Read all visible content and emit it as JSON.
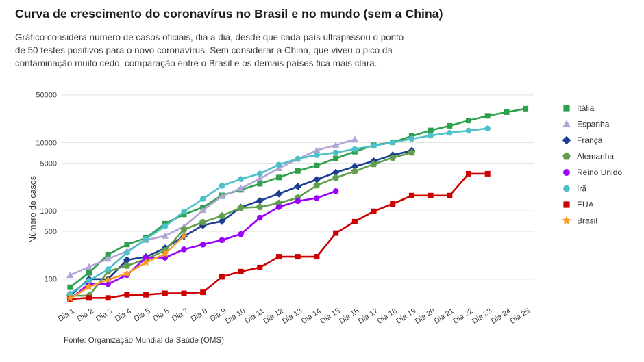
{
  "page": {
    "title": "Curva de crescimento do coronavírus no Brasil e no mundo (sem a China)",
    "subtitle_lines": [
      "Gráfico considera número de casos oficiais, dia a dia, desde que cada país ultrapassou o ponto",
      "de 50 testes positivos para o novo coronavírus. Sem considerar a China, que viveu o pico da",
      "contaminação muito cedo, comparação entre o Brasil e os demais países fica mais clara."
    ],
    "source": "Fonte: Organização Mundial da Saúde (OMS)"
  },
  "chart_data": {
    "type": "line",
    "title": "Curva de crescimento do coronavírus no Brasil e no mundo (sem a China)",
    "xlabel": "",
    "ylabel": "Número de casos",
    "yscale": "log",
    "ylim": [
      46,
      57000
    ],
    "yticks": [
      100,
      500,
      1000,
      5000,
      10000,
      50000
    ],
    "grid": true,
    "legend_position": "right",
    "categories": [
      "Dia 1",
      "Dia 2",
      "Dia 3",
      "Dia 4",
      "Dia 5",
      "Dia 6",
      "Dia 7",
      "Dia 8",
      "Dia 9",
      "Dia 10",
      "Dia 11",
      "Dia 12",
      "Dia 13",
      "Dia 14",
      "Dia 15",
      "Dia 16",
      "Dia 17",
      "Dia 18",
      "Dia 19",
      "Dia 20",
      "Dia 21",
      "Dia 22",
      "Dia 23",
      "Dia 24",
      "Dia 25"
    ],
    "series": [
      {
        "name": "Itália",
        "color": "#2da04b",
        "marker": "square",
        "values": [
          76,
          124,
          229,
          322,
          400,
          650,
          888,
          1128,
          1689,
          2036,
          2502,
          3089,
          3858,
          4636,
          5883,
          7375,
          9172,
          10149,
          12462,
          15113,
          17660,
          21157,
          24747,
          27980,
          31506
        ]
      },
      {
        "name": "Espanha",
        "color": "#b2a4d4",
        "marker": "triangle",
        "values": [
          114,
          151,
          198,
          257,
          374,
          430,
          589,
          1024,
          1639,
          2140,
          2965,
          4209,
          5753,
          7753,
          9191,
          11178
        ]
      },
      {
        "name": "França",
        "color": "#1c3d94",
        "marker": "diamond",
        "values": [
          57,
          100,
          100,
          191,
          212,
          285,
          423,
          613,
          706,
          1126,
          1412,
          1784,
          2281,
          2876,
          3661,
          4469,
          5380,
          6573,
          7652
        ]
      },
      {
        "name": "Alemanha",
        "color": "#5f9e4d",
        "marker": "pentagon",
        "values": [
          57,
          57,
          129,
          157,
          196,
          262,
          534,
          684,
          847,
          1112,
          1139,
          1296,
          1567,
          2369,
          3062,
          3795,
          4838,
          6012,
          7156
        ]
      },
      {
        "name": "Reino Unido",
        "color": "#9b00fa",
        "marker": "circle",
        "values": [
          51,
          85,
          85,
          115,
          206,
          206,
          273,
          321,
          373,
          456,
          796,
          1140,
          1391,
          1543,
          1950
        ]
      },
      {
        "name": "Irã",
        "color": "#4dc0ca",
        "marker": "circle",
        "values": [
          61,
          95,
          139,
          245,
          388,
          593,
          978,
          1501,
          2336,
          2922,
          3513,
          4747,
          5823,
          6566,
          7161,
          8042,
          9000,
          10075,
          11364,
          12729,
          13938,
          14991,
          16169
        ]
      },
      {
        "name": "EUA",
        "color": "#cc0000",
        "marker": "square",
        "values": [
          51,
          53,
          53,
          59,
          59,
          62,
          62,
          64,
          108,
          129,
          148,
          213,
          213,
          213,
          472,
          696,
          987,
          1264,
          1678,
          1678,
          1678,
          3503,
          3503
        ]
      },
      {
        "name": "Brasil",
        "color": "#f59b2c",
        "marker": "star",
        "values": [
          52,
          77,
          98,
          121,
          176,
          234,
          428
        ]
      }
    ]
  }
}
